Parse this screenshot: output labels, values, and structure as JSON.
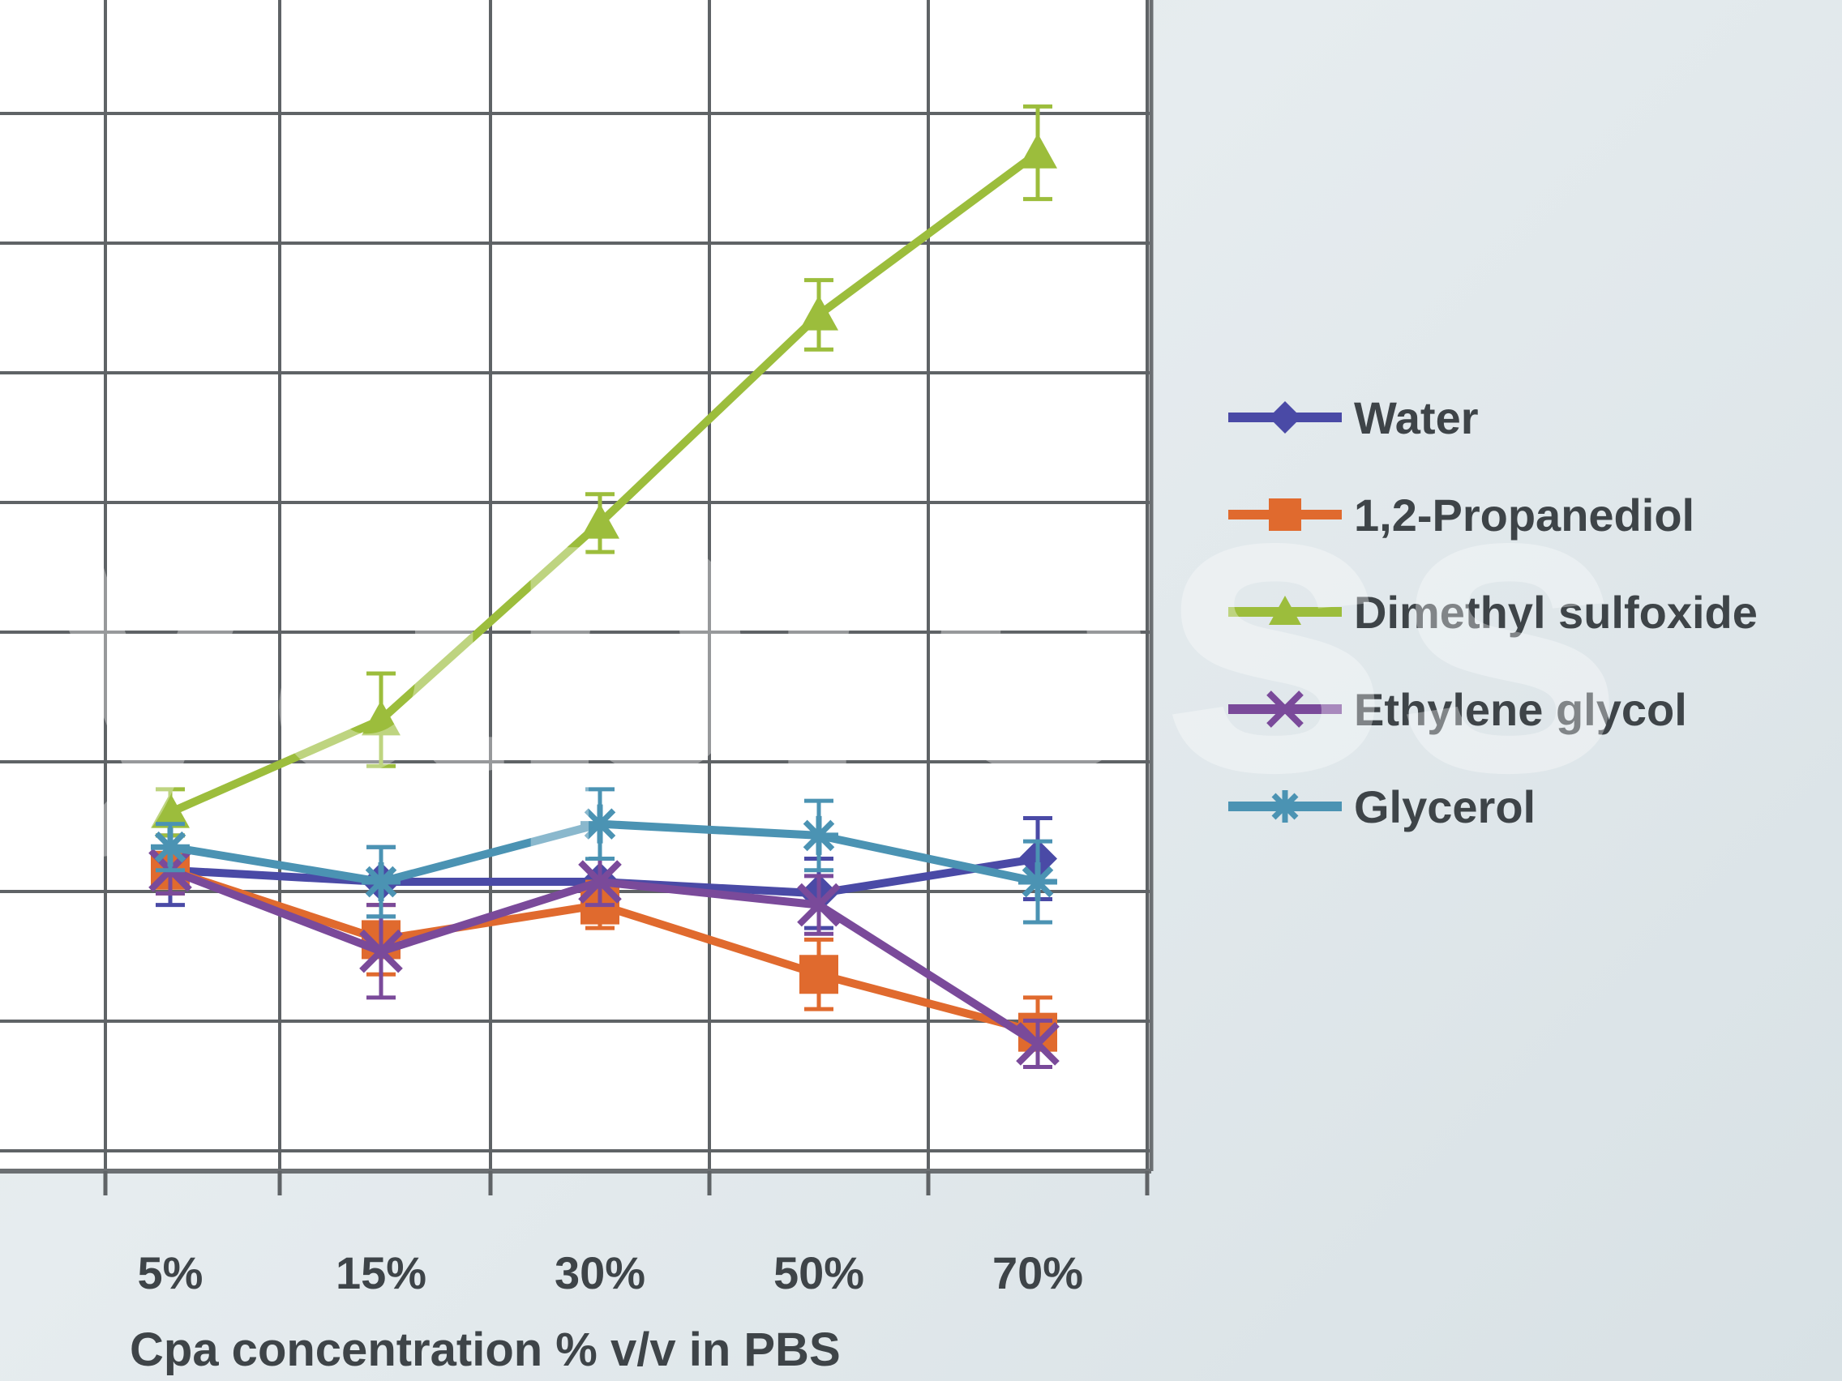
{
  "watermark": "yapress",
  "chart_data": {
    "type": "line",
    "title": "",
    "xlabel": "Cpa concentration % v/v in PBS",
    "ylabel": "",
    "categories": [
      "5%",
      "15%",
      "30%",
      "50%",
      "70%"
    ],
    "grid": true,
    "legend_position": "right",
    "series": [
      {
        "name": "Water",
        "color": "#4a4aa6",
        "marker": "diamond",
        "values": [
          5.1,
          5.0,
          5.0,
          4.9,
          5.2
        ],
        "err": [
          0.3,
          0.3,
          0.2,
          0.3,
          0.35
        ]
      },
      {
        "name": "1,2-Propanediol",
        "color": "#e06a2e",
        "marker": "square",
        "values": [
          5.1,
          4.5,
          4.8,
          4.2,
          3.7
        ],
        "err": [
          0.2,
          0.3,
          0.2,
          0.3,
          0.3
        ]
      },
      {
        "name": "Dimethyl sulfoxide",
        "color": "#9cbd3c",
        "marker": "triangle",
        "values": [
          5.6,
          6.4,
          8.1,
          9.9,
          11.3
        ],
        "err": [
          0.2,
          0.4,
          0.25,
          0.3,
          0.4
        ]
      },
      {
        "name": "Ethylene glycol",
        "color": "#7a4a9a",
        "marker": "x",
        "values": [
          5.1,
          4.4,
          5.0,
          4.8,
          3.6
        ],
        "err": [
          0.2,
          0.4,
          0.2,
          0.25,
          0.2
        ]
      },
      {
        "name": "Glycerol",
        "color": "#4b93b3",
        "marker": "star",
        "values": [
          5.3,
          5.0,
          5.5,
          5.4,
          5.0
        ],
        "err": [
          0.2,
          0.3,
          0.3,
          0.3,
          0.35
        ]
      }
    ]
  }
}
